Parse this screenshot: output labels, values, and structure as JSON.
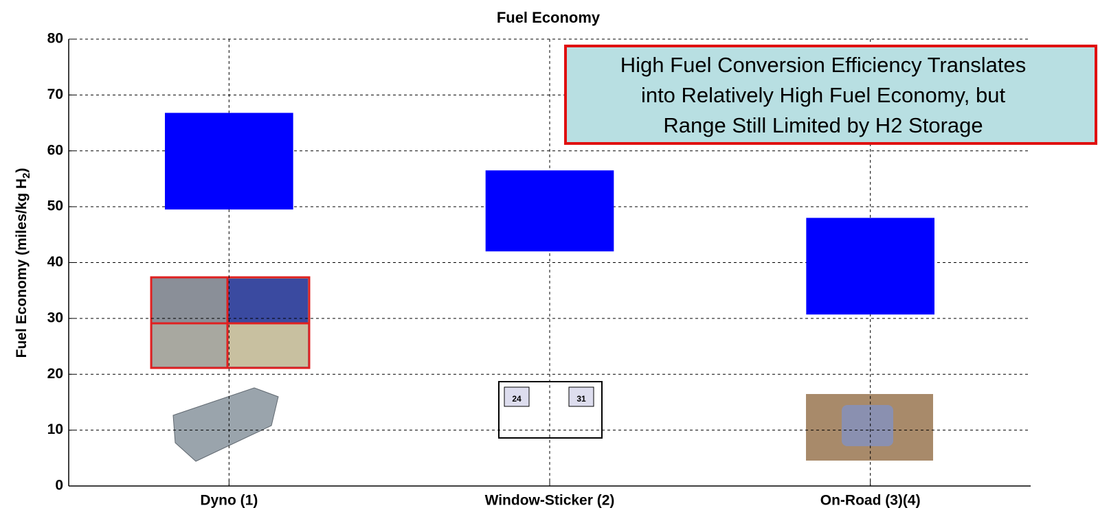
{
  "chart_data": {
    "type": "range-bar",
    "title": "Fuel Economy",
    "ylabel_parts": [
      "Fuel Economy (miles/kg H",
      "2",
      ")"
    ],
    "categories": [
      "Dyno (1)",
      "Window-Sticker (2)",
      "On-Road (3)(4)"
    ],
    "values": [
      [
        49.5,
        66.8
      ],
      [
        42,
        56.5
      ],
      [
        30.7,
        48
      ]
    ],
    "color": "#0000ff",
    "ylim": [
      0,
      80
    ],
    "yticks": [
      0,
      10,
      20,
      30,
      40,
      50,
      60,
      70,
      80
    ],
    "grid": true,
    "annotation": [
      "High Fuel Conversion Efficiency Translates",
      "into Relatively High Fuel Economy, but",
      "Range Still Limited by H2 Storage"
    ],
    "sticker": {
      "city": "24",
      "highway": "31"
    }
  }
}
